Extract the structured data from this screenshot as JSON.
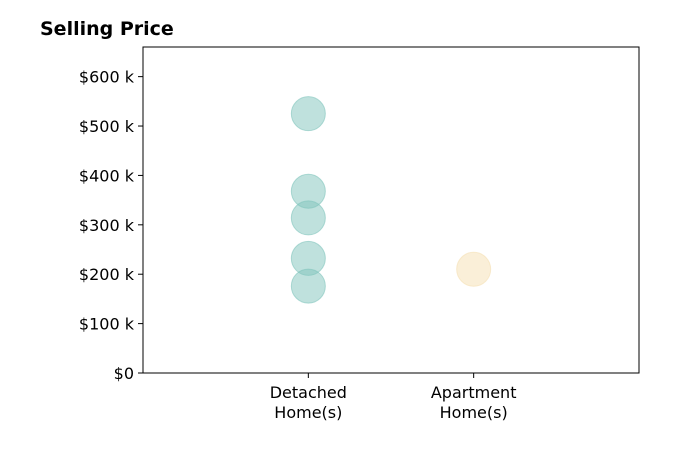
{
  "chart_data": {
    "type": "scatter",
    "title": "Selling Price",
    "xlabel": "",
    "ylabel": "",
    "categories": [
      "Detached\nHome(s)",
      "Apartment\nHome(s)"
    ],
    "xlim": [
      -1,
      2
    ],
    "ylim": [
      0,
      660000
    ],
    "y_ticks": [
      0,
      100000,
      200000,
      300000,
      400000,
      500000,
      600000
    ],
    "y_tick_labels": [
      "$0",
      "$100 k",
      "$200 k",
      "$300 k",
      "$400 k",
      "$500 k",
      "$600 k"
    ],
    "grid": false,
    "series": [
      {
        "category": "Detached\nHome(s)",
        "color": "#80c4bc",
        "values": [
          525000,
          368000,
          314000,
          232000,
          176000
        ]
      },
      {
        "category": "Apartment\nHome(s)",
        "color": "#f5dfb2",
        "values": [
          210000
        ]
      }
    ]
  }
}
